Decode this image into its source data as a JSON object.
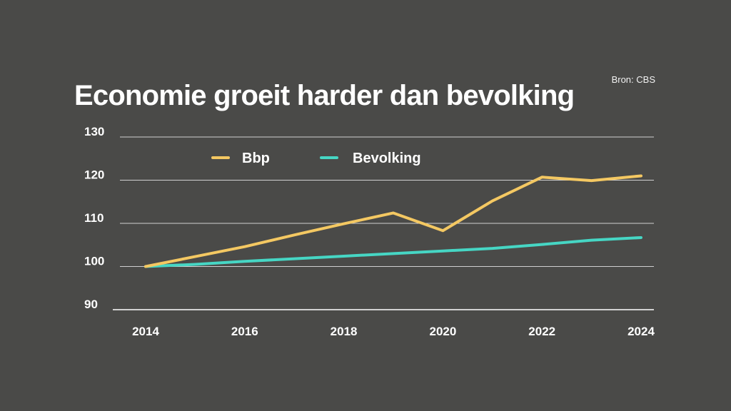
{
  "header": {
    "source": "Bron: CBS",
    "title": "Economie groeit harder dan bevolking"
  },
  "chart_data": {
    "type": "line",
    "title": "Economie groeit harder dan bevolking",
    "xlabel": "",
    "ylabel": "",
    "ylim": [
      90,
      130
    ],
    "xlim": [
      2014,
      2024
    ],
    "yticks": [
      130,
      120,
      110,
      100,
      90
    ],
    "xticks": [
      "2014",
      "2016",
      "2018",
      "2020",
      "2022",
      "2024"
    ],
    "grid": true,
    "legend_position": "top",
    "series": [
      {
        "name": "Bbp",
        "color": "#f4c862",
        "x": [
          2014,
          2015,
          2016,
          2017,
          2018,
          2019,
          2020,
          2021,
          2022,
          2023,
          2024
        ],
        "values": [
          100,
          102.3,
          104.6,
          107.3,
          109.9,
          112.4,
          108.3,
          115.2,
          120.7,
          119.9,
          121.0
        ]
      },
      {
        "name": "Bevolking",
        "color": "#46d6c4",
        "x": [
          2014,
          2015,
          2016,
          2017,
          2018,
          2019,
          2020,
          2021,
          2022,
          2023,
          2024
        ],
        "values": [
          100,
          100.5,
          101.2,
          101.8,
          102.4,
          103.0,
          103.6,
          104.2,
          105.1,
          106.1,
          106.7
        ]
      }
    ]
  }
}
